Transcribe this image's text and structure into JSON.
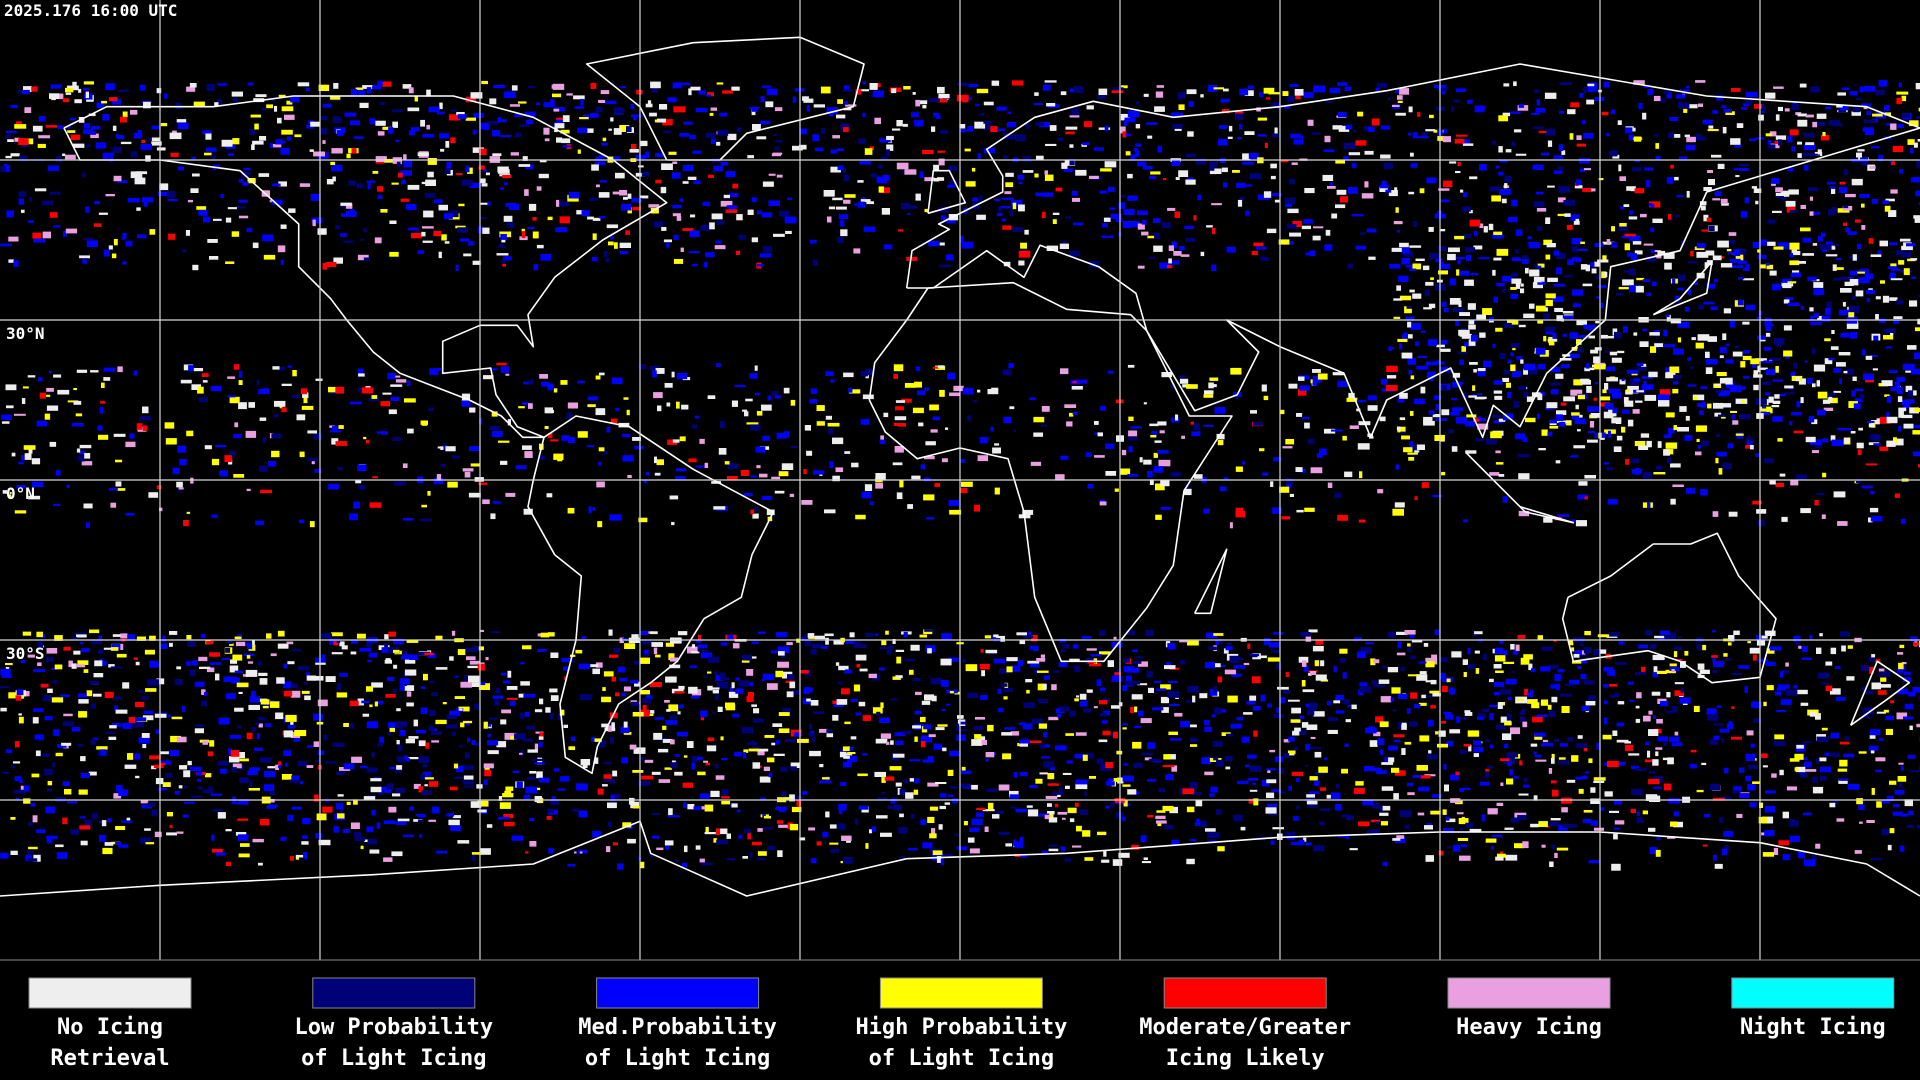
{
  "header": {
    "timestamp": "2025.176 16:00 UTC"
  },
  "map": {
    "latitude_labels": [
      "30°N",
      "0°N",
      "30°S"
    ]
  },
  "legend": {
    "items": [
      {
        "label_lines": [
          "No Icing",
          "Retrieval"
        ],
        "color": "#eeeeee"
      },
      {
        "label_lines": [
          "Low Probability",
          "of Light Icing"
        ],
        "color": "#000078"
      },
      {
        "label_lines": [
          "Med.Probability",
          "of Light Icing"
        ],
        "color": "#0000ff"
      },
      {
        "label_lines": [
          "High Probability",
          "of Light Icing"
        ],
        "color": "#ffff00"
      },
      {
        "label_lines": [
          "Moderate/Greater",
          "Icing Likely"
        ],
        "color": "#ff0000"
      },
      {
        "label_lines": [
          "Heavy Icing"
        ],
        "color": "#e8a0e0"
      },
      {
        "label_lines": [
          "Night Icing"
        ],
        "color": "#00ffff"
      }
    ]
  }
}
